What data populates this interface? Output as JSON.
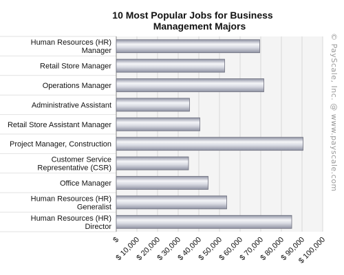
{
  "chart_data": {
    "type": "bar",
    "orientation": "horizontal",
    "title_lines": [
      "10 Most Popular Jobs for Business",
      "Management Majors"
    ],
    "categories": [
      [
        "Human Resources (HR)",
        "Manager"
      ],
      [
        "Retail Store Manager"
      ],
      [
        "Operations Manager"
      ],
      [
        "Administrative Assistant"
      ],
      [
        "Retail Store Assistant Manager"
      ],
      [
        "Project Manager, Construction"
      ],
      [
        "Customer Service",
        "Representative (CSR)"
      ],
      [
        "Office Manager"
      ],
      [
        "Human Resources (HR)",
        "Generalist"
      ],
      [
        "Human Resources (HR)",
        "Director"
      ]
    ],
    "values": [
      69500,
      52500,
      71500,
      35500,
      40500,
      90500,
      35000,
      44500,
      53500,
      85000
    ],
    "xlim": [
      0,
      100000
    ],
    "ticks": [
      0,
      10000,
      20000,
      30000,
      40000,
      50000,
      60000,
      70000,
      80000,
      90000,
      100000
    ],
    "tick_labels": [
      "$",
      "$ 10,000",
      "$ 20,000",
      "$ 30,000",
      "$ 40,000",
      "$ 50,000",
      "$ 60,000",
      "$ 70,000",
      "$ 80,000",
      "$ 90,000",
      "$ 100,000"
    ],
    "grid": true,
    "colors": {
      "bar_light": "#f4f5f8",
      "bar_mid": "#c9cbd6",
      "bar_dark": "#8f92a3",
      "grid": "#d8d8d8",
      "plot_bg": "#f4f4f4"
    }
  },
  "watermark": "© PayScale, Inc. @ www.payscale.com"
}
